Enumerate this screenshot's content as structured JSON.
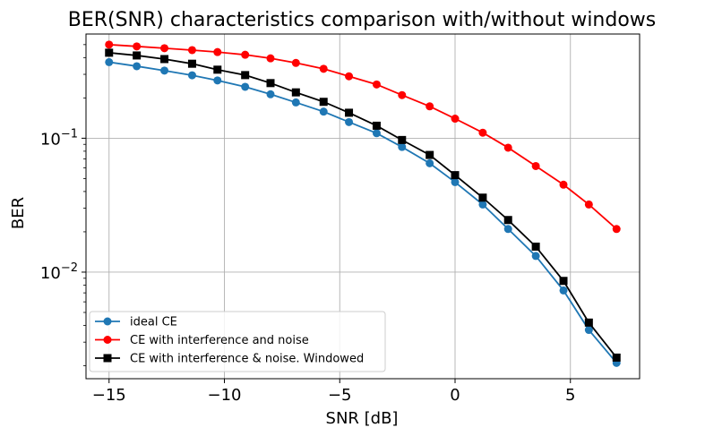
{
  "chart_data": {
    "type": "line",
    "title": "BER(SNR) characteristics comparison with/without windows",
    "xlabel": "SNR [dB]",
    "ylabel": "BER",
    "xlim": [
      -16,
      8
    ],
    "ylim": [
      0.0016,
      0.6
    ],
    "yscale": "log",
    "grid": true,
    "legend_position": "lower-left",
    "x_ticks": [
      {
        "value": -15,
        "label": "−15"
      },
      {
        "value": -10,
        "label": "−10"
      },
      {
        "value": -5,
        "label": "−5"
      },
      {
        "value": 0,
        "label": "0"
      },
      {
        "value": 5,
        "label": "5"
      }
    ],
    "y_ticks": [
      {
        "value": 0.1,
        "base": "10",
        "exp": "−1"
      },
      {
        "value": 0.01,
        "base": "10",
        "exp": "−2"
      }
    ],
    "x": [
      -15,
      -13.8,
      -12.6,
      -11.4,
      -10.3,
      -9.1,
      -8,
      -6.9,
      -5.7,
      -4.6,
      -3.4,
      -2.3,
      -1.1,
      0,
      1.2,
      2.3,
      3.5,
      4.7,
      5.8,
      7
    ],
    "series": [
      {
        "name": "ideal CE",
        "color": "#1f77b4",
        "marker": "circle",
        "values": [
          0.37,
          0.345,
          0.32,
          0.295,
          0.27,
          0.242,
          0.213,
          0.185,
          0.158,
          0.132,
          0.109,
          0.086,
          0.065,
          0.047,
          0.032,
          0.021,
          0.0132,
          0.0073,
          0.0037,
          0.0021
        ]
      },
      {
        "name": "CE with interference and noise",
        "color": "#ff0000",
        "marker": "circle",
        "values": [
          0.5,
          0.485,
          0.47,
          0.455,
          0.44,
          0.42,
          0.395,
          0.365,
          0.33,
          0.29,
          0.252,
          0.21,
          0.173,
          0.14,
          0.11,
          0.085,
          0.062,
          0.045,
          0.032,
          0.021
        ]
      },
      {
        "name": "CE with interference & noise. Windowed",
        "color": "#000000",
        "marker": "square",
        "values": [
          0.435,
          0.415,
          0.39,
          0.36,
          0.325,
          0.296,
          0.258,
          0.22,
          0.187,
          0.155,
          0.124,
          0.097,
          0.075,
          0.053,
          0.036,
          0.0245,
          0.0155,
          0.0086,
          0.0042,
          0.0023
        ]
      }
    ]
  }
}
